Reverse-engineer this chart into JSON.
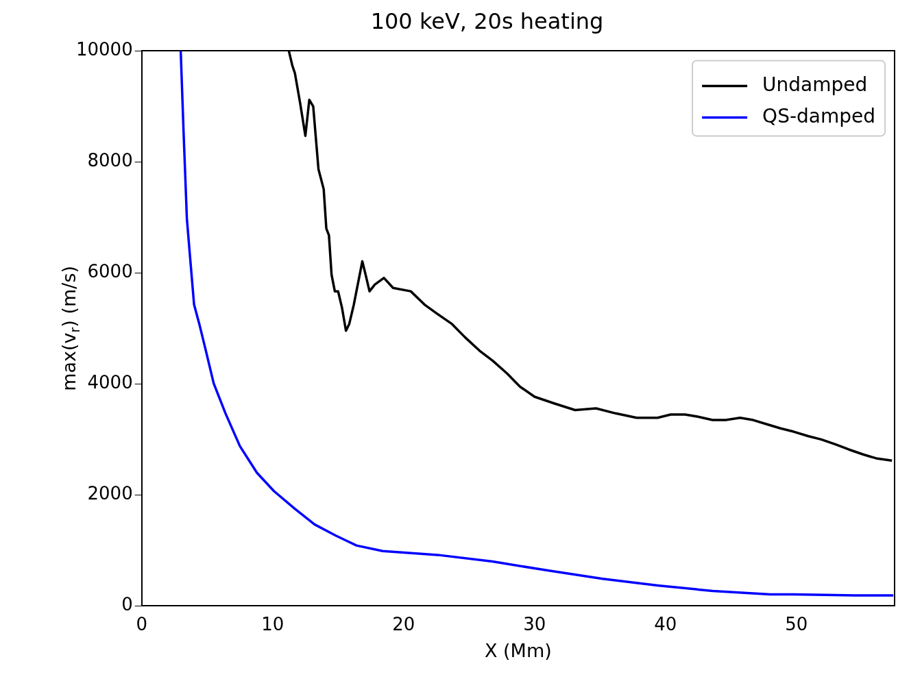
{
  "chart_data": {
    "type": "line",
    "title": "100 keV, 20s heating",
    "xlabel": "X (Mm)",
    "ylabel": "max(v$_{r}$) (m/s)",
    "xlim": [
      0,
      57.5
    ],
    "xticks": [
      0,
      10,
      20,
      30,
      40,
      50
    ],
    "ylim": [
      0,
      10000
    ],
    "yticks": [
      0,
      2000,
      4000,
      6000,
      8000,
      10000
    ],
    "grid": false,
    "legend": "top right",
    "marker": "none",
    "line_style": "solid",
    "series": [
      {
        "name": "Undamped",
        "color": "#000000",
        "x": [
          11.24,
          11.5,
          11.7,
          12.1,
          12.5,
          12.8,
          13.1,
          13.5,
          13.9,
          14.1,
          14.3,
          14.5,
          14.75,
          15.0,
          15.3,
          15.6,
          15.85,
          16.2,
          16.5,
          16.85,
          17.1,
          17.4,
          17.8,
          18.5,
          19.2,
          20.55,
          21.6,
          22.6,
          23.7,
          24.7,
          25.8,
          26.8,
          27.9,
          28.9,
          30.0,
          31.5,
          33.1,
          34.7,
          36.2,
          37.8,
          39.4,
          40.4,
          41.5,
          42.5,
          43.6,
          44.6,
          45.7,
          46.7,
          47.8,
          48.8,
          49.8,
          50.9,
          51.9,
          53.0,
          54.0,
          55.1,
          56.1,
          57.3
        ],
        "values": [
          10000,
          9740,
          9600,
          9060,
          8470,
          9120,
          9000,
          7870,
          7510,
          6800,
          6680,
          5970,
          5670,
          5670,
          5370,
          4960,
          5080,
          5430,
          5790,
          6210,
          5970,
          5670,
          5790,
          5910,
          5730,
          5670,
          5430,
          5260,
          5080,
          4840,
          4600,
          4420,
          4190,
          3950,
          3770,
          3650,
          3530,
          3560,
          3470,
          3390,
          3390,
          3450,
          3450,
          3410,
          3350,
          3350,
          3390,
          3350,
          3270,
          3200,
          3140,
          3060,
          3000,
          2910,
          2820,
          2730,
          2660,
          2620
        ]
      },
      {
        "name": "QS-damped",
        "color": "#0000ff",
        "x": [
          2.98,
          3.2,
          3.45,
          3.7,
          4.0,
          4.4,
          4.9,
          5.5,
          6.4,
          7.5,
          8.8,
          10.1,
          11.7,
          13.2,
          14.8,
          16.4,
          18.4,
          22.6,
          26.8,
          31.0,
          35.2,
          39.4,
          43.6,
          48.0,
          49.8,
          54.5,
          57.4
        ],
        "values": [
          10000,
          8530,
          6980,
          6270,
          5430,
          5080,
          4600,
          4010,
          3470,
          2880,
          2400,
          2070,
          1750,
          1470,
          1270,
          1090,
          990,
          920,
          800,
          640,
          490,
          370,
          270,
          210,
          210,
          190,
          190
        ]
      }
    ]
  }
}
